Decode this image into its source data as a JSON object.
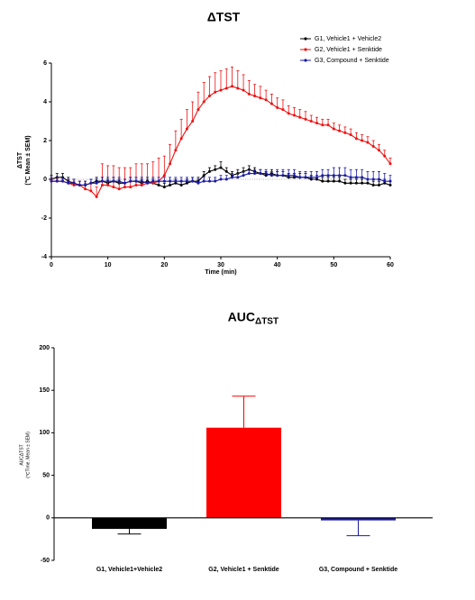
{
  "chart_data": [
    {
      "type": "line",
      "title": "ΔTST",
      "y_label": [
        "ΔTST",
        "(℃ Mean ± SEM)"
      ],
      "x_label": "Time (min)",
      "x": [
        0,
        1,
        2,
        3,
        4,
        5,
        6,
        7,
        8,
        9,
        10,
        11,
        12,
        13,
        14,
        15,
        16,
        17,
        18,
        19,
        20,
        21,
        22,
        23,
        24,
        25,
        26,
        27,
        28,
        29,
        30,
        31,
        32,
        33,
        34,
        35,
        36,
        37,
        38,
        39,
        40,
        41,
        42,
        43,
        44,
        45,
        46,
        47,
        48,
        49,
        50,
        51,
        52,
        53,
        54,
        55,
        56,
        57,
        58,
        59,
        60
      ],
      "xlim": [
        0,
        60
      ],
      "xticks": [
        0,
        10,
        20,
        30,
        40,
        50,
        60
      ],
      "ylim": [
        -4,
        6
      ],
      "yticks": [
        -4,
        -2,
        0,
        2,
        4,
        6
      ],
      "series": [
        {
          "name": "G1, Vehicle1 + Vehicle2",
          "color": "#000000",
          "values": [
            0,
            0.1,
            0.1,
            -0.1,
            -0.2,
            -0.3,
            -0.3,
            -0.2,
            -0.1,
            -0.1,
            -0.2,
            -0.1,
            -0.2,
            -0.2,
            -0.1,
            -0.1,
            -0.2,
            -0.1,
            -0.2,
            -0.3,
            -0.4,
            -0.3,
            -0.2,
            -0.3,
            -0.2,
            -0.1,
            -0.1,
            0.2,
            0.4,
            0.5,
            0.6,
            0.4,
            0.2,
            0.3,
            0.4,
            0.5,
            0.4,
            0.3,
            0.2,
            0.3,
            0.2,
            0.2,
            0.1,
            0.1,
            0.1,
            0.1,
            0,
            0,
            -0.1,
            -0.1,
            -0.1,
            -0.1,
            -0.2,
            -0.2,
            -0.2,
            -0.2,
            -0.2,
            -0.3,
            -0.3,
            -0.2,
            -0.3
          ],
          "errors": [
            0.2,
            0.2,
            0.2,
            0.2,
            0.2,
            0.2,
            0.2,
            0.2,
            0.2,
            0.2,
            0.2,
            0.2,
            0.2,
            0.2,
            0.2,
            0.2,
            0.2,
            0.2,
            0.2,
            0.2,
            0.2,
            0.2,
            0.2,
            0.2,
            0.2,
            0.2,
            0.2,
            0.2,
            0.2,
            0.2,
            0.3,
            0.2,
            0.2,
            0.2,
            0.2,
            0.2,
            0.2,
            0.2,
            0.2,
            0.2,
            0.2,
            0.2,
            0.2,
            0.2,
            0.2,
            0.2,
            0.2,
            0.2,
            0.2,
            0.2,
            0.2,
            0.2,
            0.2,
            0.2,
            0.2,
            0.2,
            0.2,
            0.2,
            0.2,
            0.2,
            0.2
          ]
        },
        {
          "name": "G2, Vehicle1 + Senktide",
          "color": "#ee1111",
          "values": [
            -0.1,
            -0.1,
            -0.1,
            -0.2,
            -0.3,
            -0.3,
            -0.5,
            -0.6,
            -0.9,
            -0.3,
            -0.3,
            -0.4,
            -0.5,
            -0.4,
            -0.4,
            -0.3,
            -0.3,
            -0.2,
            -0.2,
            -0.1,
            0.2,
            0.8,
            1.5,
            2.1,
            2.6,
            3.0,
            3.6,
            4.0,
            4.3,
            4.5,
            4.6,
            4.7,
            4.8,
            4.7,
            4.6,
            4.4,
            4.3,
            4.2,
            4.1,
            3.9,
            3.7,
            3.6,
            3.4,
            3.3,
            3.2,
            3.1,
            3.0,
            2.9,
            2.8,
            2.8,
            2.6,
            2.5,
            2.4,
            2.3,
            2.1,
            2.0,
            1.9,
            1.7,
            1.5,
            1.2,
            0.8
          ],
          "errors": [
            0.1,
            0.1,
            0.1,
            0.1,
            0.2,
            0.2,
            0.3,
            0.4,
            0.5,
            1.1,
            1.0,
            1.1,
            1.1,
            1.0,
            1.0,
            1.1,
            1.1,
            1.0,
            1.1,
            1.2,
            1.0,
            1.0,
            1.0,
            1.0,
            1.0,
            1.0,
            0.9,
            1.0,
            1.0,
            1.0,
            1.0,
            1.0,
            1.0,
            0.9,
            0.8,
            0.7,
            0.6,
            0.6,
            0.5,
            0.5,
            0.5,
            0.5,
            0.4,
            0.4,
            0.4,
            0.4,
            0.3,
            0.3,
            0.3,
            0.3,
            0.3,
            0.3,
            0.3,
            0.3,
            0.3,
            0.3,
            0.3,
            0.3,
            0.3,
            0.3,
            0.3
          ]
        },
        {
          "name": "G3, Compound + Senktide",
          "color": "#1a1aa6",
          "values": [
            -0.1,
            -0.1,
            -0.1,
            -0.2,
            -0.2,
            -0.3,
            -0.3,
            -0.2,
            -0.2,
            -0.1,
            -0.1,
            -0.1,
            -0.1,
            -0.2,
            -0.1,
            -0.1,
            -0.1,
            -0.2,
            -0.1,
            -0.1,
            -0.1,
            -0.1,
            -0.1,
            -0.1,
            -0.1,
            -0.1,
            -0.2,
            -0.1,
            -0.1,
            -0.1,
            0,
            0,
            0.1,
            0.1,
            0.2,
            0.3,
            0.3,
            0.3,
            0.3,
            0.2,
            0.2,
            0.2,
            0.2,
            0.2,
            0.1,
            0.1,
            0.1,
            0.1,
            0.2,
            0.2,
            0.2,
            0.2,
            0.2,
            0.1,
            0.1,
            0.1,
            0,
            0,
            0,
            -0.1,
            -0.1
          ],
          "errors": [
            0.2,
            0.2,
            0.2,
            0.2,
            0.2,
            0.2,
            0.2,
            0.2,
            0.2,
            0.2,
            0.2,
            0.2,
            0.2,
            0.2,
            0.2,
            0.2,
            0.2,
            0.2,
            0.2,
            0.2,
            0.2,
            0.2,
            0.2,
            0.2,
            0.2,
            0.2,
            0.2,
            0.2,
            0.2,
            0.2,
            0.2,
            0.2,
            0.2,
            0.2,
            0.2,
            0.2,
            0.2,
            0.2,
            0.2,
            0.2,
            0.3,
            0.3,
            0.3,
            0.3,
            0.3,
            0.3,
            0.3,
            0.3,
            0.3,
            0.3,
            0.4,
            0.4,
            0.4,
            0.4,
            0.4,
            0.4,
            0.4,
            0.4,
            0.4,
            0.4,
            0.3
          ]
        }
      ]
    },
    {
      "type": "bar",
      "title": "AUC",
      "title_sub": "ΔTST",
      "y_label": [
        "AUCΔTST",
        "(℃Time, Mean ± SEM)"
      ],
      "categories": [
        "G1, Vehicle1+Vehicle2",
        "G2, Vehicle1 + Senktide",
        "G3, Compound + Senktide"
      ],
      "values": [
        -13,
        106,
        -3
      ],
      "errors": [
        6,
        37,
        18
      ],
      "colors": [
        "#000000",
        "#ff0000",
        "#1a1aa6"
      ],
      "ylim": [
        -50,
        200
      ],
      "yticks": [
        -50,
        0,
        50,
        100,
        150,
        200
      ]
    }
  ]
}
